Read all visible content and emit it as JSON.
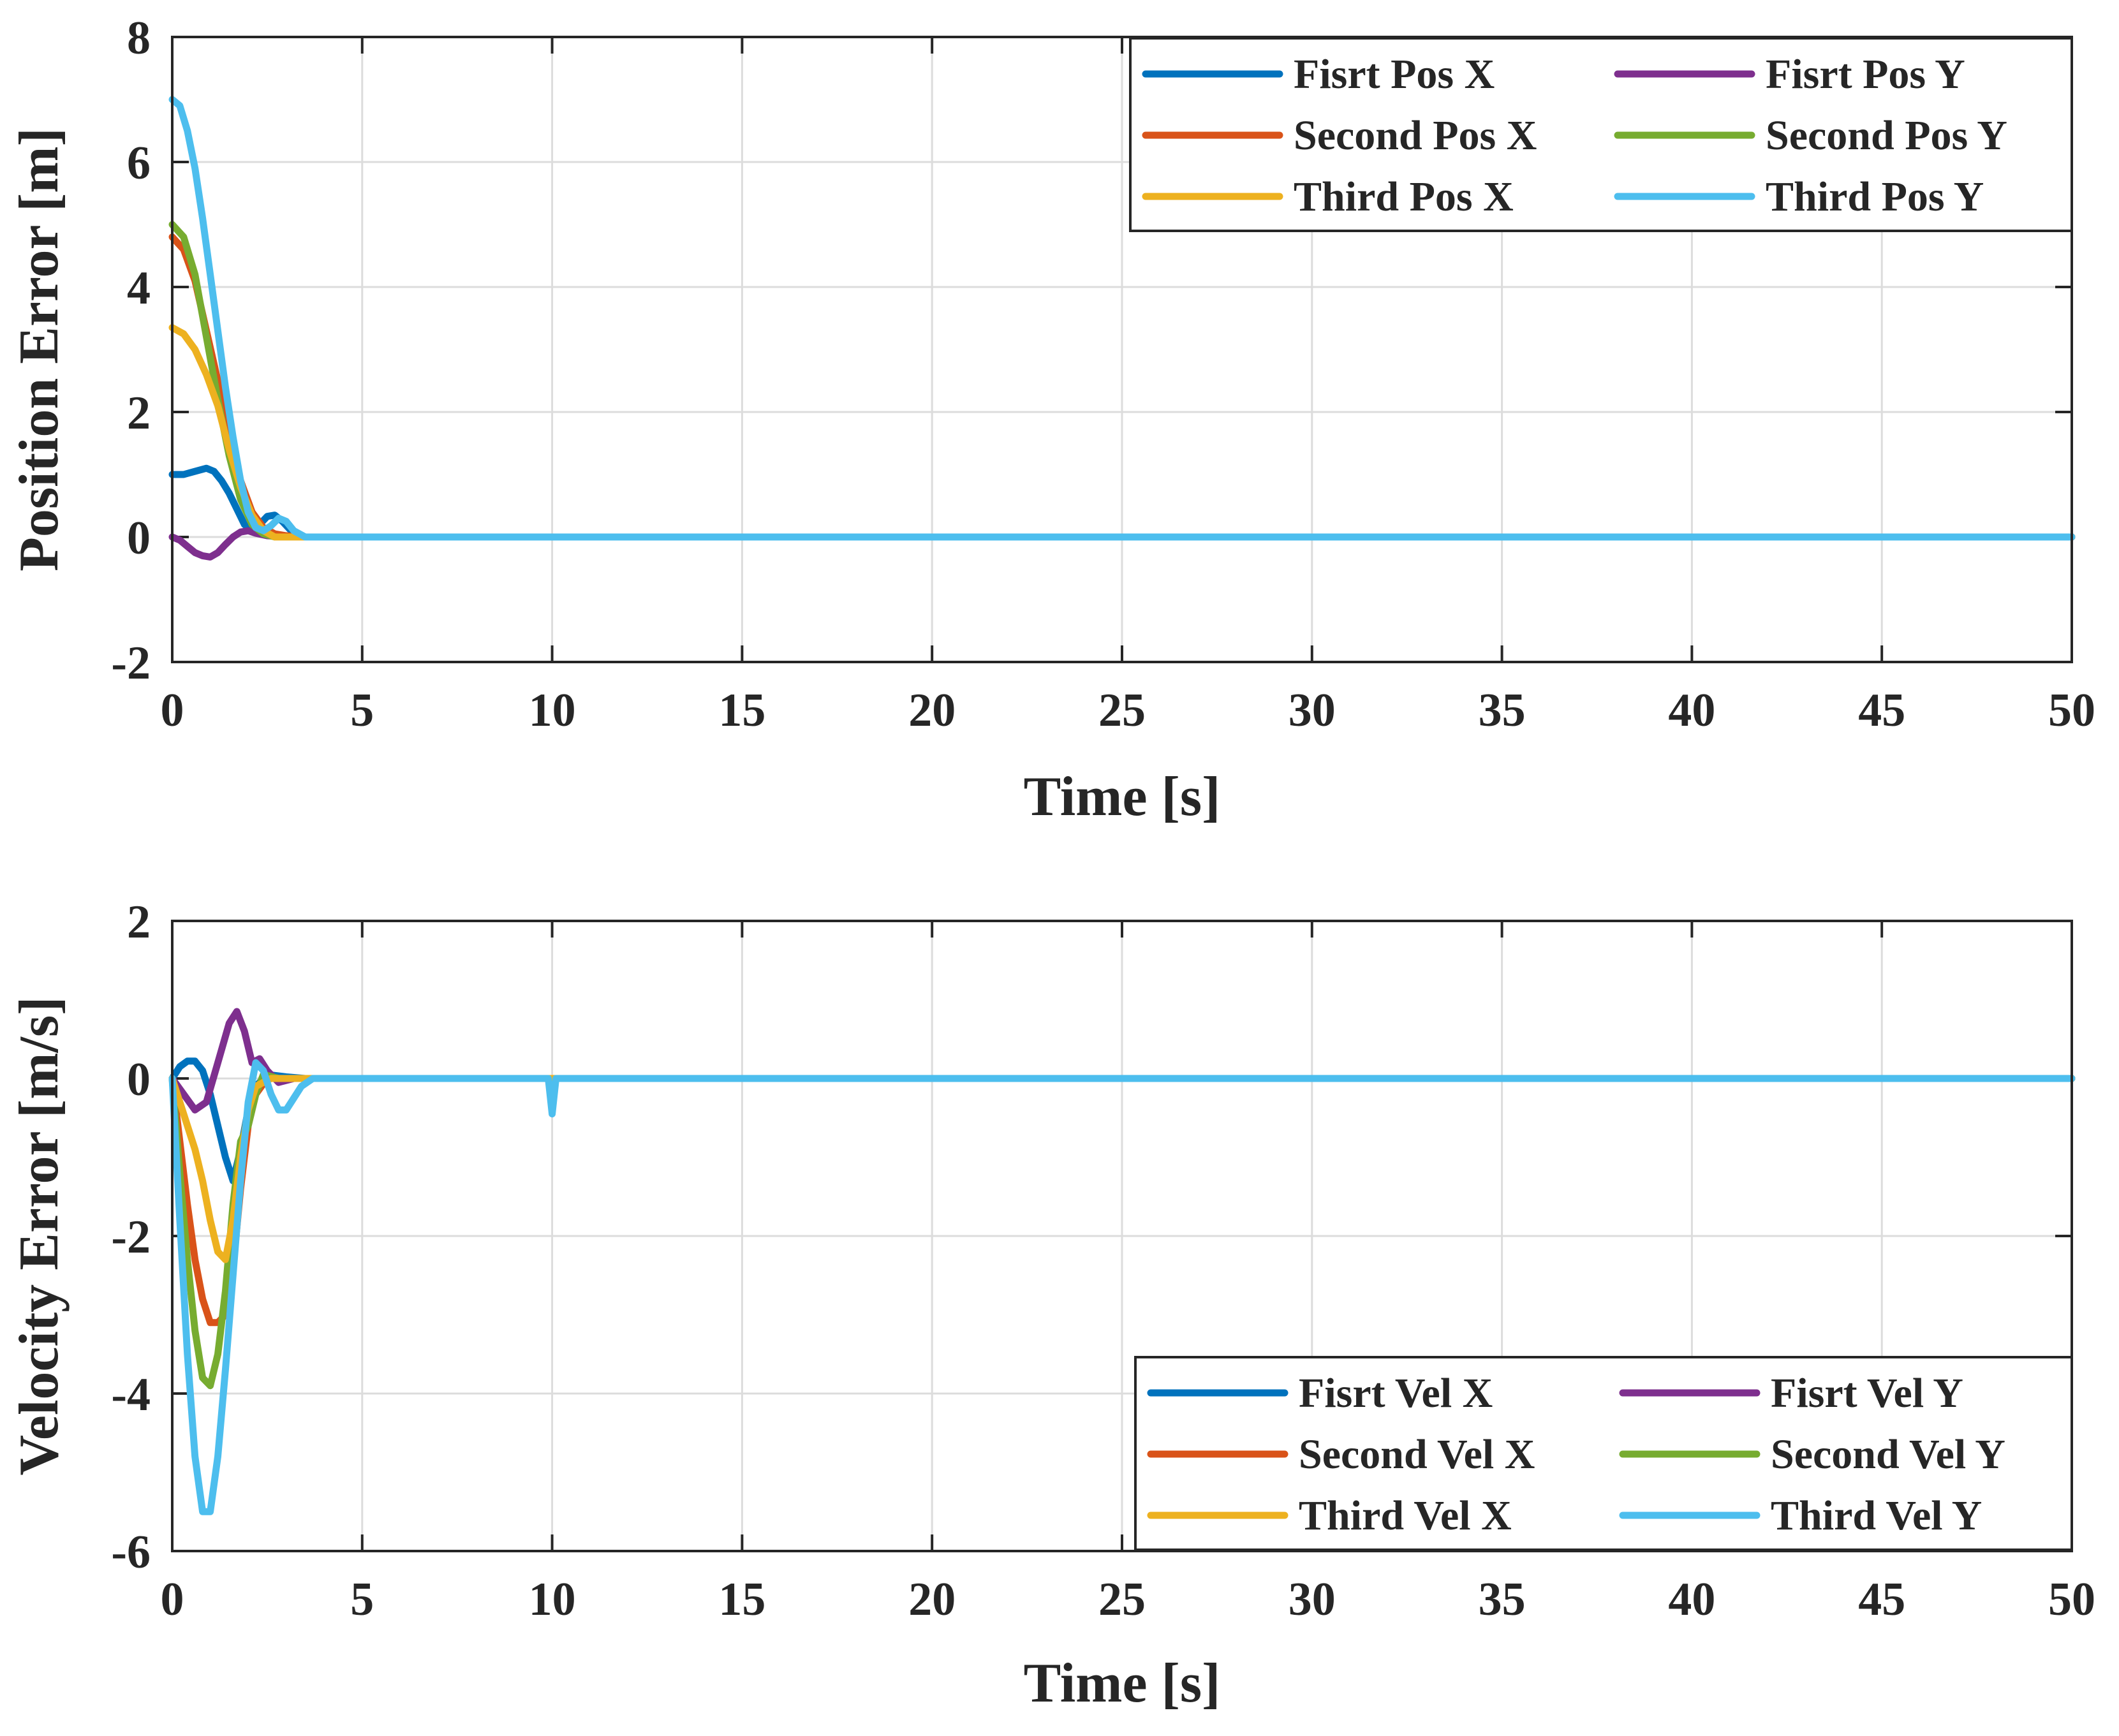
{
  "chart_data": [
    {
      "type": "line",
      "title": "",
      "xlabel": "Time [s]",
      "ylabel": "Position Error [m]",
      "xlim": [
        0,
        50
      ],
      "ylim": [
        -2,
        8
      ],
      "xticks": [
        0,
        5,
        10,
        15,
        20,
        25,
        30,
        35,
        40,
        45,
        50
      ],
      "yticks": [
        -2,
        0,
        2,
        4,
        6,
        8
      ],
      "grid": true,
      "legend_position": "top-right",
      "series": [
        {
          "name": "Fisrt Pos X",
          "color": "#0072BD",
          "x": [
            0,
            0.3,
            0.6,
            0.9,
            1.1,
            1.3,
            1.5,
            1.7,
            1.9,
            2.1,
            2.3,
            2.5,
            2.7,
            2.9,
            3.1,
            3.3,
            3.5,
            50
          ],
          "y": [
            1.0,
            1.0,
            1.05,
            1.1,
            1.05,
            0.9,
            0.7,
            0.45,
            0.2,
            0.1,
            0.2,
            0.33,
            0.35,
            0.25,
            0.12,
            0.04,
            0,
            0
          ]
        },
        {
          "name": "Fisrt Pos Y",
          "color": "#7E2F8E",
          "x": [
            0,
            0.2,
            0.4,
            0.6,
            0.8,
            1.0,
            1.2,
            1.4,
            1.6,
            1.8,
            2.0,
            2.2,
            2.5,
            3.0,
            50
          ],
          "y": [
            0,
            -0.05,
            -0.15,
            -0.25,
            -0.3,
            -0.32,
            -0.25,
            -0.12,
            0.0,
            0.08,
            0.1,
            0.06,
            0.02,
            0,
            0
          ]
        },
        {
          "name": "Second Pos X",
          "color": "#D95319",
          "x": [
            0,
            0.3,
            0.6,
            0.9,
            1.2,
            1.5,
            1.8,
            2.1,
            2.4,
            2.7,
            3.0,
            3.3,
            50
          ],
          "y": [
            4.8,
            4.6,
            4.1,
            3.3,
            2.5,
            1.6,
            0.9,
            0.4,
            0.15,
            0.05,
            0.02,
            0,
            0
          ]
        },
        {
          "name": "Second Pos Y",
          "color": "#77AC30",
          "x": [
            0,
            0.3,
            0.6,
            0.9,
            1.2,
            1.5,
            1.8,
            2.1,
            2.4,
            2.7,
            3.0,
            3.3,
            50
          ],
          "y": [
            5.0,
            4.8,
            4.2,
            3.2,
            2.2,
            1.3,
            0.6,
            0.2,
            0.05,
            0.0,
            0.0,
            0,
            0
          ]
        },
        {
          "name": "Third Pos X",
          "color": "#EDB120",
          "x": [
            0,
            0.3,
            0.6,
            0.9,
            1.2,
            1.5,
            1.8,
            2.1,
            2.4,
            2.7,
            3.0,
            3.4,
            50
          ],
          "y": [
            3.35,
            3.25,
            3.0,
            2.6,
            2.1,
            1.4,
            0.8,
            0.35,
            0.1,
            0.0,
            0.0,
            0,
            0
          ]
        },
        {
          "name": "Third Pos Y",
          "color": "#4DBEEE",
          "x": [
            0,
            0.2,
            0.4,
            0.6,
            0.8,
            1.0,
            1.2,
            1.4,
            1.6,
            1.8,
            2.0,
            2.2,
            2.4,
            2.6,
            2.8,
            3.0,
            3.2,
            3.5,
            50
          ],
          "y": [
            7.0,
            6.9,
            6.5,
            5.9,
            5.1,
            4.2,
            3.3,
            2.4,
            1.6,
            0.9,
            0.4,
            0.15,
            0.1,
            0.18,
            0.3,
            0.25,
            0.1,
            0,
            0
          ]
        }
      ]
    },
    {
      "type": "line",
      "title": "",
      "xlabel": "Time [s]",
      "ylabel": "Velocity Error [m/s]",
      "xlim": [
        0,
        50
      ],
      "ylim": [
        -6,
        2
      ],
      "xticks": [
        0,
        5,
        10,
        15,
        20,
        25,
        30,
        35,
        40,
        45,
        50
      ],
      "yticks": [
        -6,
        -4,
        -2,
        0,
        2
      ],
      "grid": true,
      "legend_position": "bottom-right",
      "series": [
        {
          "name": "Fisrt Vel X",
          "color": "#0072BD",
          "x": [
            0,
            0.2,
            0.4,
            0.6,
            0.8,
            1.0,
            1.2,
            1.4,
            1.6,
            1.8,
            2.0,
            2.2,
            2.5,
            3.0,
            3.5,
            50
          ],
          "y": [
            0,
            0.15,
            0.22,
            0.22,
            0.1,
            -0.2,
            -0.6,
            -1.0,
            -1.3,
            -0.9,
            -0.4,
            -0.1,
            0.05,
            0.02,
            0,
            0
          ]
        },
        {
          "name": "Fisrt Vel Y",
          "color": "#7E2F8E",
          "x": [
            0,
            0.3,
            0.6,
            0.9,
            1.2,
            1.5,
            1.7,
            1.9,
            2.1,
            2.3,
            2.5,
            2.8,
            3.2,
            50
          ],
          "y": [
            0,
            -0.2,
            -0.4,
            -0.3,
            0.2,
            0.7,
            0.85,
            0.6,
            0.2,
            0.25,
            0.1,
            -0.05,
            0,
            0
          ]
        },
        {
          "name": "Second Vel X",
          "color": "#D95319",
          "x": [
            0,
            0.2,
            0.4,
            0.6,
            0.8,
            1.0,
            1.2,
            1.4,
            1.6,
            1.8,
            2.0,
            2.2,
            2.5,
            3.0,
            50
          ],
          "y": [
            0,
            -0.8,
            -1.6,
            -2.3,
            -2.8,
            -3.1,
            -3.1,
            -3.0,
            -2.4,
            -1.4,
            -0.6,
            -0.2,
            0,
            0,
            0
          ]
        },
        {
          "name": "Second Vel Y",
          "color": "#77AC30",
          "x": [
            0,
            0.2,
            0.4,
            0.6,
            0.8,
            1.0,
            1.2,
            1.4,
            1.6,
            1.8,
            2.0,
            2.2,
            2.4,
            2.8,
            3.2,
            50
          ],
          "y": [
            0,
            -1.2,
            -2.3,
            -3.2,
            -3.8,
            -3.9,
            -3.5,
            -2.7,
            -1.6,
            -0.8,
            -0.6,
            -0.2,
            0.05,
            0,
            0,
            0
          ]
        },
        {
          "name": "Third Vel X",
          "color": "#EDB120",
          "x": [
            0,
            0.2,
            0.4,
            0.6,
            0.8,
            1.0,
            1.2,
            1.4,
            1.6,
            1.8,
            2.0,
            2.2,
            2.6,
            3.0,
            50
          ],
          "y": [
            0,
            -0.3,
            -0.6,
            -0.9,
            -1.3,
            -1.8,
            -2.2,
            -2.3,
            -1.8,
            -1.0,
            -0.4,
            -0.1,
            0,
            0,
            0
          ]
        },
        {
          "name": "Third Vel Y",
          "color": "#4DBEEE",
          "x": [
            0,
            0.2,
            0.4,
            0.6,
            0.8,
            1.0,
            1.2,
            1.4,
            1.6,
            1.8,
            2.0,
            2.2,
            2.4,
            2.6,
            2.8,
            3.0,
            3.2,
            3.4,
            3.7,
            9.9,
            10.0,
            10.1,
            10.2,
            50
          ],
          "y": [
            0,
            -1.8,
            -3.5,
            -4.8,
            -5.5,
            -5.5,
            -4.8,
            -3.7,
            -2.5,
            -1.3,
            -0.3,
            0.2,
            0.1,
            -0.2,
            -0.4,
            -0.4,
            -0.25,
            -0.1,
            0,
            0,
            -0.45,
            0,
            0,
            0
          ]
        }
      ]
    }
  ]
}
